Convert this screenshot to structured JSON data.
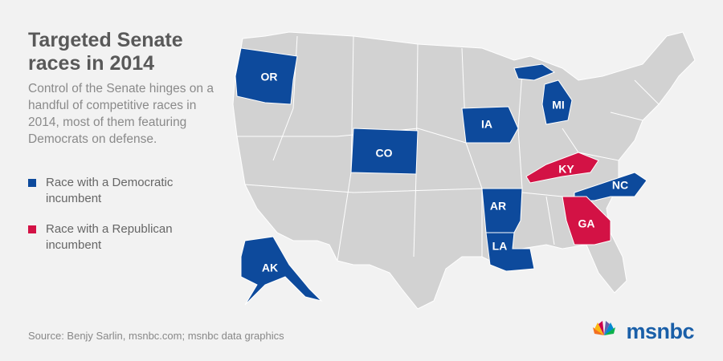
{
  "title": "Targeted Senate races in 2014",
  "subtitle": "Control of the Senate hinges on a handful of competitive races in 2014, most of them featuring Democrats on defense.",
  "legend": [
    {
      "label": "Race with a Democratic incumbent",
      "color": "#0d4a9c",
      "states": [
        "OR",
        "AK",
        "CO",
        "IA",
        "AR",
        "LA",
        "MI",
        "NC"
      ]
    },
    {
      "label": "Race with a Republican incumbent",
      "color": "#d31245",
      "states": [
        "KY",
        "GA"
      ]
    }
  ],
  "source": "Source: Benjy Sarlin, msnbc.com; msnbc data graphics",
  "logo": "msnbc"
}
